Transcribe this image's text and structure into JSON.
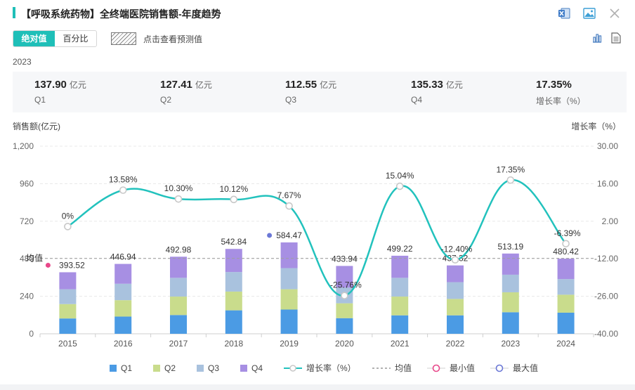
{
  "header": {
    "title": "【呼吸系统药物】全终端医院销售额-年度趋势",
    "icons": [
      "excel-export-icon",
      "image-export-icon",
      "close-icon"
    ]
  },
  "toolbar": {
    "tabs": [
      {
        "label": "绝对值",
        "active": true
      },
      {
        "label": "百分比",
        "active": false
      }
    ],
    "predict_label": "点击查看预测值",
    "right_icons": [
      "bar-chart-icon",
      "table-view-icon"
    ]
  },
  "summary": {
    "year": "2023",
    "stats": [
      {
        "value": "137.90",
        "unit": "亿元",
        "label": "Q1"
      },
      {
        "value": "127.41",
        "unit": "亿元",
        "label": "Q2"
      },
      {
        "value": "112.55",
        "unit": "亿元",
        "label": "Q3"
      },
      {
        "value": "135.33",
        "unit": "亿元",
        "label": "Q4"
      },
      {
        "value": "17.35%",
        "unit": "",
        "label": "增长率（%）"
      }
    ]
  },
  "colors": {
    "accent": "#1fbfb8",
    "q1": "#4b9be4",
    "q2": "#c9dc8c",
    "q3": "#a9c2de",
    "q4": "#a78fe3",
    "growth": "#22c2bd",
    "min": "#e8488a",
    "max": "#6b78d6"
  },
  "chart_data": {
    "type": "bar",
    "stacked": true,
    "categories": [
      "2015",
      "2016",
      "2017",
      "2018",
      "2019",
      "2020",
      "2021",
      "2022",
      "2023",
      "2024"
    ],
    "ylabel": "销售额(亿元)",
    "ylabel_right": "增长率（%）",
    "ylim": [
      0,
      1200
    ],
    "ylim_right": [
      -40,
      30
    ],
    "yticks": [
      "0",
      "240",
      "480",
      "720",
      "960",
      "1,200"
    ],
    "yticks_right": [
      "-40.00",
      "-26.00",
      "-12.00",
      "2.00",
      "16.00",
      "30.00"
    ],
    "series": [
      {
        "name": "Q1",
        "values": [
          98,
          110,
          120,
          150,
          155,
          100,
          118,
          118,
          137.9,
          135
        ]
      },
      {
        "name": "Q2",
        "values": [
          92,
          105,
          118,
          120,
          130,
          95,
          120,
          105,
          127.41,
          115
        ]
      },
      {
        "name": "Q3",
        "values": [
          95,
          105,
          120,
          125,
          135,
          100,
          120,
          107,
          112.55,
          100
        ]
      },
      {
        "name": "Q4",
        "values": [
          108.52,
          126.94,
          134.98,
          147.84,
          164.47,
          138.94,
          141.22,
          107.32,
          135.33,
          130.42
        ]
      }
    ],
    "totals": [
      393.52,
      446.94,
      492.98,
      542.84,
      584.47,
      433.94,
      499.22,
      437.32,
      513.19,
      480.42
    ],
    "total_labels": [
      "393.52",
      "446.94",
      "492.98",
      "542.84",
      "584.47",
      "433.94",
      "499.22",
      "437.32",
      "513.19",
      "480.42"
    ],
    "growth": {
      "name": "增长率（%）",
      "values": [
        0,
        13.58,
        10.3,
        10.12,
        7.67,
        -25.76,
        15.04,
        -12.4,
        17.35,
        -6.39
      ],
      "labels": [
        "0%",
        "13.58%",
        "10.30%",
        "10.12%",
        "7.67%",
        "-25.76%",
        "15.04%",
        "-12.40%",
        "17.35%",
        "-6.39%"
      ]
    },
    "average": {
      "name": "均值",
      "value": 482.5,
      "label": "均值"
    },
    "min_marker": {
      "name": "最小值",
      "index": 0
    },
    "max_marker": {
      "name": "最大值",
      "index": 4
    },
    "grid": true,
    "legend": {
      "placement": "bottom-center",
      "items": [
        {
          "name": "Q1",
          "kind": "bar",
          "color": "#4b9be4"
        },
        {
          "name": "Q2",
          "kind": "bar",
          "color": "#c9dc8c"
        },
        {
          "name": "Q3",
          "kind": "bar",
          "color": "#a9c2de"
        },
        {
          "name": "Q4",
          "kind": "bar",
          "color": "#a78fe3"
        },
        {
          "name": "增长率（%）",
          "kind": "line",
          "color": "#22c2bd"
        },
        {
          "name": "均值",
          "kind": "dash",
          "color": "#999999"
        },
        {
          "name": "最小值",
          "kind": "circle",
          "color": "#e8488a"
        },
        {
          "name": "最大值",
          "kind": "circle",
          "color": "#6b78d6"
        }
      ]
    }
  }
}
